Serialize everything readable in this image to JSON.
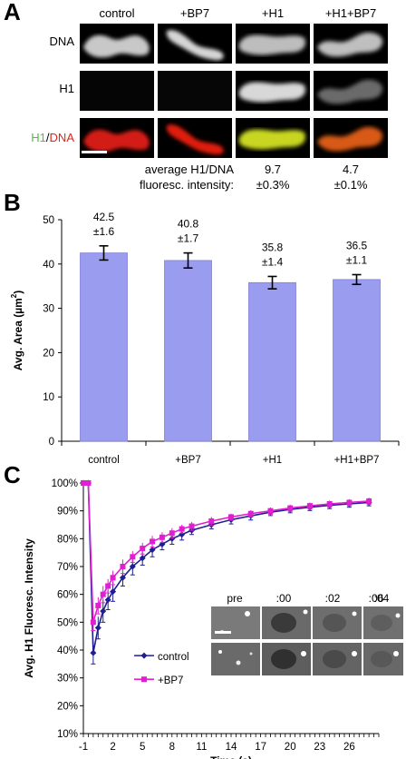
{
  "panelA": {
    "letter": "A",
    "columns": [
      "control",
      "+BP7",
      "+H1",
      "+H1+BP7"
    ],
    "rows": [
      "DNA",
      "H1"
    ],
    "merge_label_h1": "H1",
    "merge_label_sep": "/",
    "merge_label_dna": "DNA",
    "avg_label_line1": "average H1/DNA",
    "avg_label_line2": "fluoresc. intensity:",
    "values": [
      {
        "mean": "9.7",
        "err": "±0.3%"
      },
      {
        "mean": "4.7",
        "err": "±0.1%"
      }
    ],
    "colors": {
      "h1_green": "#4fbf3a",
      "dna_red": "#e0241c"
    }
  },
  "panelB": {
    "letter": "B"
  },
  "panelC": {
    "letter": "C",
    "inset": {
      "headers": [
        "pre",
        ":00",
        ":02",
        ":04",
        ":06"
      ]
    }
  },
  "chart_data": [
    {
      "type": "bar",
      "categories": [
        "control",
        "+BP7",
        "+H1",
        "+H1+BP7"
      ],
      "values": [
        42.5,
        40.8,
        35.8,
        36.5
      ],
      "errors": [
        1.6,
        1.7,
        1.4,
        1.1
      ],
      "value_labels": [
        "42.5",
        "40.8",
        "35.8",
        "36.5"
      ],
      "error_labels": [
        "±1.6",
        "±1.7",
        "±1.4",
        "±1.1"
      ],
      "ylabel": "Avg. Area (µm",
      "ylabel_sup": "2",
      "ylabel_close": ")",
      "ylim": [
        0,
        50
      ],
      "yticks": [
        0,
        10,
        20,
        30,
        40,
        50
      ],
      "bar_color": "#9a9cf0"
    },
    {
      "type": "line",
      "xlabel": "Time (s)",
      "ylabel": "Avg. H1 Fluoresc. Intensity",
      "xlim": [
        -1,
        29
      ],
      "ylim": [
        10,
        100
      ],
      "xticks": [
        -1,
        2,
        5,
        8,
        11,
        14,
        17,
        20,
        23,
        26
      ],
      "yticks": [
        10,
        20,
        30,
        40,
        50,
        60,
        70,
        80,
        90,
        100
      ],
      "ytick_labels": [
        "10%",
        "20%",
        "30%",
        "40%",
        "50%",
        "60%",
        "70%",
        "80%",
        "90%",
        "100%"
      ],
      "legend": "right",
      "series": [
        {
          "name": "control",
          "color": "#1f1f8f",
          "x": [
            -1,
            -0.5,
            0,
            0.5,
            1,
            1.5,
            2,
            3,
            4,
            5,
            6,
            7,
            8,
            9,
            10,
            12,
            14,
            16,
            18,
            20,
            22,
            24,
            26,
            28
          ],
          "y": [
            100,
            100,
            39,
            48,
            54,
            58,
            61,
            66,
            70,
            73,
            76,
            78,
            80,
            81.5,
            83,
            85,
            86.8,
            88.2,
            89.5,
            90.5,
            91.3,
            92,
            92.5,
            93
          ],
          "err": [
            0,
            0,
            4,
            4,
            4,
            3.5,
            3.5,
            3,
            3,
            2.5,
            2.5,
            2,
            2,
            2,
            1.5,
            1.5,
            1.5,
            1.5,
            1.2,
            1.2,
            1.2,
            1.2,
            1.2,
            1.2
          ]
        },
        {
          "name": "+BP7",
          "color": "#e020d0",
          "x": [
            -1,
            -0.5,
            0,
            0.5,
            1,
            1.5,
            2,
            3,
            4,
            5,
            6,
            7,
            8,
            9,
            10,
            12,
            14,
            16,
            18,
            20,
            22,
            24,
            26,
            28
          ],
          "y": [
            100,
            100,
            50,
            56,
            60,
            63,
            66,
            70,
            73.5,
            76.5,
            79,
            80.5,
            82,
            83.5,
            84.5,
            86.3,
            87.8,
            89,
            90,
            91,
            91.8,
            92.5,
            93,
            93.5
          ],
          "err": [
            0,
            0,
            3,
            3,
            3,
            2.5,
            2.5,
            2.5,
            2,
            2,
            2,
            1.8,
            1.8,
            1.5,
            1.5,
            1.5,
            1.2,
            1.2,
            1.2,
            1.2,
            1.2,
            1.2,
            1.2,
            1.2
          ]
        }
      ]
    }
  ]
}
